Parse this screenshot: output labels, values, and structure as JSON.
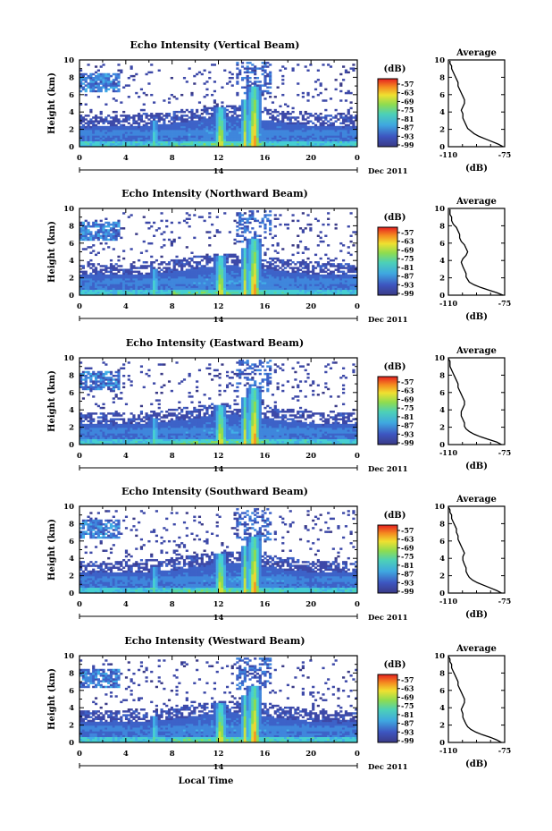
{
  "chart_data": [
    {
      "type": "heatmap",
      "title": "Echo Intensity (Vertical Beam)",
      "ylabel": "Height (km)",
      "xlim": [
        0,
        24
      ],
      "ylim": [
        0,
        10
      ],
      "x_ticks": [
        "0",
        "4",
        "8",
        "12",
        "16",
        "20",
        "0"
      ],
      "y_ticks": [
        "0",
        "2",
        "4",
        "6",
        "8",
        "10"
      ],
      "date_label": "14",
      "month_label": "Dec 2011",
      "colorbar": {
        "unit": "(dB)",
        "labels": [
          "-57",
          "-63",
          "-69",
          "-75",
          "-81",
          "-87",
          "-93",
          "-99"
        ]
      },
      "profile": {
        "title": "Average",
        "xlabel": "(dB)",
        "x_ticks": [
          "-110",
          "-75"
        ],
        "y_ticks": [
          "0",
          "2",
          "4",
          "6",
          "8",
          "10"
        ],
        "xlim": [
          -110,
          -75
        ],
        "ylim": [
          0,
          10
        ],
        "x": [
          -76,
          -79,
          -83,
          -87,
          -91,
          -94,
          -96,
          -98,
          -99,
          -100,
          -101,
          -101,
          -102,
          -101,
          -100,
          -100,
          -101,
          -102,
          -103,
          -104,
          -104,
          -105,
          -106,
          -107,
          -108,
          -108,
          -109,
          -109
        ],
        "y": [
          0,
          0.3,
          0.6,
          0.9,
          1.2,
          1.5,
          1.8,
          2.1,
          2.5,
          2.9,
          3.3,
          3.8,
          4.2,
          4.6,
          5.0,
          5.4,
          5.8,
          6.2,
          6.6,
          7.0,
          7.4,
          7.8,
          8.2,
          8.6,
          9.0,
          9.3,
          9.6,
          9.9
        ]
      }
    },
    {
      "type": "heatmap",
      "title": "Echo Intensity (Northward Beam)",
      "ylabel": "Height (km)",
      "xlim": [
        0,
        24
      ],
      "ylim": [
        0,
        10
      ],
      "x_ticks": [
        "0",
        "4",
        "8",
        "12",
        "16",
        "20",
        "0"
      ],
      "y_ticks": [
        "0",
        "2",
        "4",
        "6",
        "8",
        "10"
      ],
      "date_label": "14",
      "month_label": "Dec 2011",
      "colorbar": {
        "unit": "(dB)",
        "labels": [
          "-57",
          "-63",
          "-69",
          "-75",
          "-81",
          "-87",
          "-93",
          "-99"
        ]
      },
      "profile": {
        "title": "Average",
        "xlabel": "(dB)",
        "x_ticks": [
          "-110",
          "-75"
        ],
        "y_ticks": [
          "0",
          "2",
          "4",
          "6",
          "8",
          "10"
        ],
        "xlim": [
          -110,
          -75
        ],
        "ylim": [
          0,
          10
        ],
        "x": [
          -76,
          -80,
          -85,
          -90,
          -94,
          -97,
          -98,
          -99,
          -99,
          -100,
          -101,
          -102,
          -101,
          -99,
          -98,
          -99,
          -100,
          -102,
          -103,
          -103,
          -104,
          -105,
          -107,
          -108,
          -108,
          -109,
          -109,
          -109
        ],
        "y": [
          0,
          0.3,
          0.6,
          0.9,
          1.2,
          1.5,
          1.8,
          2.1,
          2.5,
          2.9,
          3.3,
          3.8,
          4.2,
          4.6,
          5.0,
          5.4,
          5.8,
          6.2,
          6.6,
          7.0,
          7.4,
          7.8,
          8.2,
          8.6,
          9.0,
          9.3,
          9.6,
          9.9
        ]
      }
    },
    {
      "type": "heatmap",
      "title": "Echo Intensity (Eastward Beam)",
      "ylabel": "Height (km)",
      "xlim": [
        0,
        24
      ],
      "ylim": [
        0,
        10
      ],
      "x_ticks": [
        "0",
        "4",
        "8",
        "12",
        "16",
        "20",
        "0"
      ],
      "y_ticks": [
        "0",
        "2",
        "4",
        "6",
        "8",
        "10"
      ],
      "date_label": "14",
      "month_label": "Dec 2011",
      "colorbar": {
        "unit": "(dB)",
        "labels": [
          "-57",
          "-63",
          "-69",
          "-75",
          "-81",
          "-87",
          "-93",
          "-99"
        ]
      },
      "profile": {
        "title": "Average",
        "xlabel": "(dB)",
        "x_ticks": [
          "-110",
          "-75"
        ],
        "y_ticks": [
          "0",
          "2",
          "4",
          "6",
          "8",
          "10"
        ],
        "xlim": [
          -110,
          -75
        ],
        "ylim": [
          0,
          10
        ],
        "x": [
          -77,
          -80,
          -85,
          -90,
          -94,
          -97,
          -99,
          -100,
          -100,
          -101,
          -102,
          -102,
          -101,
          -100,
          -100,
          -101,
          -102,
          -103,
          -104,
          -104,
          -105,
          -106,
          -107,
          -108,
          -109,
          -109,
          -109,
          -110
        ],
        "y": [
          0,
          0.3,
          0.6,
          0.9,
          1.2,
          1.5,
          1.8,
          2.1,
          2.5,
          2.9,
          3.3,
          3.8,
          4.2,
          4.6,
          5.0,
          5.4,
          5.8,
          6.2,
          6.6,
          7.0,
          7.4,
          7.8,
          8.2,
          8.6,
          9.0,
          9.3,
          9.6,
          9.9
        ]
      }
    },
    {
      "type": "heatmap",
      "title": "Echo Intensity (Southward Beam)",
      "ylabel": "Height (km)",
      "xlim": [
        0,
        24
      ],
      "ylim": [
        0,
        10
      ],
      "x_ticks": [
        "0",
        "4",
        "8",
        "12",
        "16",
        "20",
        "0"
      ],
      "y_ticks": [
        "0",
        "2",
        "4",
        "6",
        "8",
        "10"
      ],
      "date_label": "14",
      "month_label": "Dec 2011",
      "colorbar": {
        "unit": "(dB)",
        "labels": [
          "-57",
          "-63",
          "-69",
          "-75",
          "-81",
          "-87",
          "-93",
          "-99"
        ]
      },
      "profile": {
        "title": "Average",
        "xlabel": "(dB)",
        "x_ticks": [
          "-110",
          "-75"
        ],
        "y_ticks": [
          "0",
          "2",
          "4",
          "6",
          "8",
          "10"
        ],
        "xlim": [
          -110,
          -75
        ],
        "ylim": [
          0,
          10
        ],
        "x": [
          -77,
          -80,
          -84,
          -88,
          -92,
          -95,
          -97,
          -98,
          -99,
          -99,
          -100,
          -101,
          -101,
          -100,
          -101,
          -102,
          -103,
          -104,
          -104,
          -105,
          -105,
          -106,
          -107,
          -108,
          -108,
          -109,
          -109,
          -110
        ],
        "y": [
          0,
          0.3,
          0.6,
          0.9,
          1.2,
          1.5,
          1.8,
          2.1,
          2.5,
          2.9,
          3.3,
          3.8,
          4.2,
          4.6,
          5.0,
          5.4,
          5.8,
          6.2,
          6.6,
          7.0,
          7.4,
          7.8,
          8.2,
          8.6,
          9.0,
          9.3,
          9.6,
          9.9
        ]
      }
    },
    {
      "type": "heatmap",
      "title": "Echo Intensity (Westward Beam)",
      "ylabel": "Height (km)",
      "xlabel": "Local Time",
      "xlim": [
        0,
        24
      ],
      "ylim": [
        0,
        10
      ],
      "x_ticks": [
        "0",
        "4",
        "8",
        "12",
        "16",
        "20",
        "0"
      ],
      "y_ticks": [
        "0",
        "2",
        "4",
        "6",
        "8",
        "10"
      ],
      "date_label": "14",
      "month_label": "Dec 2011",
      "colorbar": {
        "unit": "(dB)",
        "labels": [
          "-57",
          "-63",
          "-69",
          "-75",
          "-81",
          "-87",
          "-93",
          "-99"
        ]
      },
      "profile": {
        "title": "Average",
        "xlabel": "(dB)",
        "x_ticks": [
          "-110",
          "-75"
        ],
        "y_ticks": [
          "0",
          "2",
          "4",
          "6",
          "8",
          "10"
        ],
        "xlim": [
          -110,
          -75
        ],
        "ylim": [
          0,
          10
        ],
        "x": [
          -77,
          -80,
          -84,
          -89,
          -93,
          -96,
          -98,
          -99,
          -100,
          -101,
          -101,
          -102,
          -101,
          -100,
          -100,
          -101,
          -102,
          -103,
          -104,
          -104,
          -105,
          -106,
          -107,
          -108,
          -108,
          -109,
          -109,
          -110
        ],
        "y": [
          0,
          0.3,
          0.6,
          0.9,
          1.2,
          1.5,
          1.8,
          2.1,
          2.5,
          2.9,
          3.3,
          3.8,
          4.2,
          4.6,
          5.0,
          5.4,
          5.8,
          6.2,
          6.6,
          7.0,
          7.4,
          7.8,
          8.2,
          8.6,
          9.0,
          9.3,
          9.6,
          9.9
        ]
      }
    }
  ]
}
